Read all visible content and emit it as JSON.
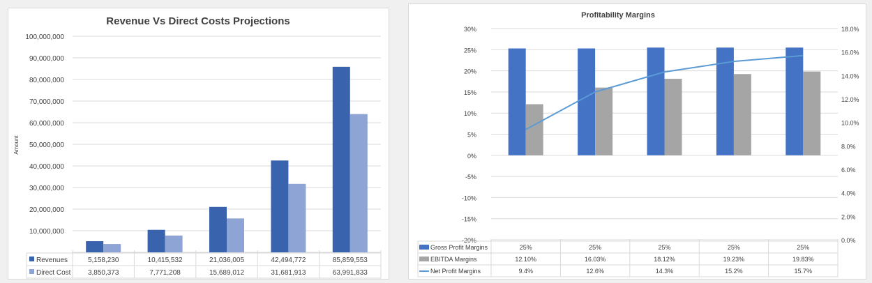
{
  "chart_data": [
    {
      "type": "bar",
      "title": "Revenue Vs Direct Costs Projections",
      "ylabel": "Amount",
      "ylim": [
        0,
        100000000
      ],
      "yticks": [
        "-",
        "10,000,000",
        "20,000,000",
        "30,000,000",
        "40,000,000",
        "50,000,000",
        "60,000,000",
        "70,000,000",
        "80,000,000",
        "90,000,000",
        "100,000,000"
      ],
      "grid": true,
      "legend": "data-table",
      "series": [
        {
          "name": "Revenues",
          "color": "#3a63ad",
          "values": [
            5158230,
            10415532,
            21036005,
            42494772,
            85859553
          ],
          "labels": [
            "5,158,230",
            "10,415,532",
            "21,036,005",
            "42,494,772",
            "85,859,553"
          ]
        },
        {
          "name": "Direct Cost",
          "color": "#8ea4d4",
          "values": [
            3850373,
            7771208,
            15689012,
            31681913,
            63991833
          ],
          "labels": [
            "3,850,373",
            "7,771,208",
            "15,689,012",
            "31,681,913",
            "63,991,833"
          ]
        }
      ]
    },
    {
      "type": "bar+line",
      "title": "Profitability Margins",
      "ylim": [
        -20,
        30
      ],
      "y2lim": [
        0,
        18
      ],
      "yticks": [
        "-20%",
        "-15%",
        "-10%",
        "-5%",
        "0%",
        "5%",
        "10%",
        "15%",
        "20%",
        "25%",
        "30%"
      ],
      "y2ticks": [
        "0.0%",
        "2.0%",
        "4.0%",
        "6.0%",
        "8.0%",
        "10.0%",
        "12.0%",
        "14.0%",
        "16.0%",
        "18.0%"
      ],
      "grid": true,
      "legend": "data-table",
      "series": [
        {
          "name": "Gross Profit Margins",
          "type": "bar",
          "axis": "left",
          "color": "#4472c4",
          "values": [
            25.3,
            25.3,
            25.5,
            25.5,
            25.5
          ],
          "labels": [
            "25%",
            "25%",
            "25%",
            "25%",
            "25%"
          ]
        },
        {
          "name": "EBITDA Margins",
          "type": "bar",
          "axis": "left",
          "color": "#a5a5a5",
          "values": [
            12.1,
            16.03,
            18.12,
            19.23,
            19.83
          ],
          "labels": [
            "12.10%",
            "16.03%",
            "18.12%",
            "19.23%",
            "19.83%"
          ]
        },
        {
          "name": "Net Profit Margins",
          "type": "line",
          "axis": "right",
          "color": "#5b9bd5",
          "values": [
            9.4,
            12.6,
            14.3,
            15.2,
            15.7
          ],
          "labels": [
            "9.4%",
            "12.6%",
            "14.3%",
            "15.2%",
            "15.7%"
          ]
        }
      ]
    }
  ]
}
